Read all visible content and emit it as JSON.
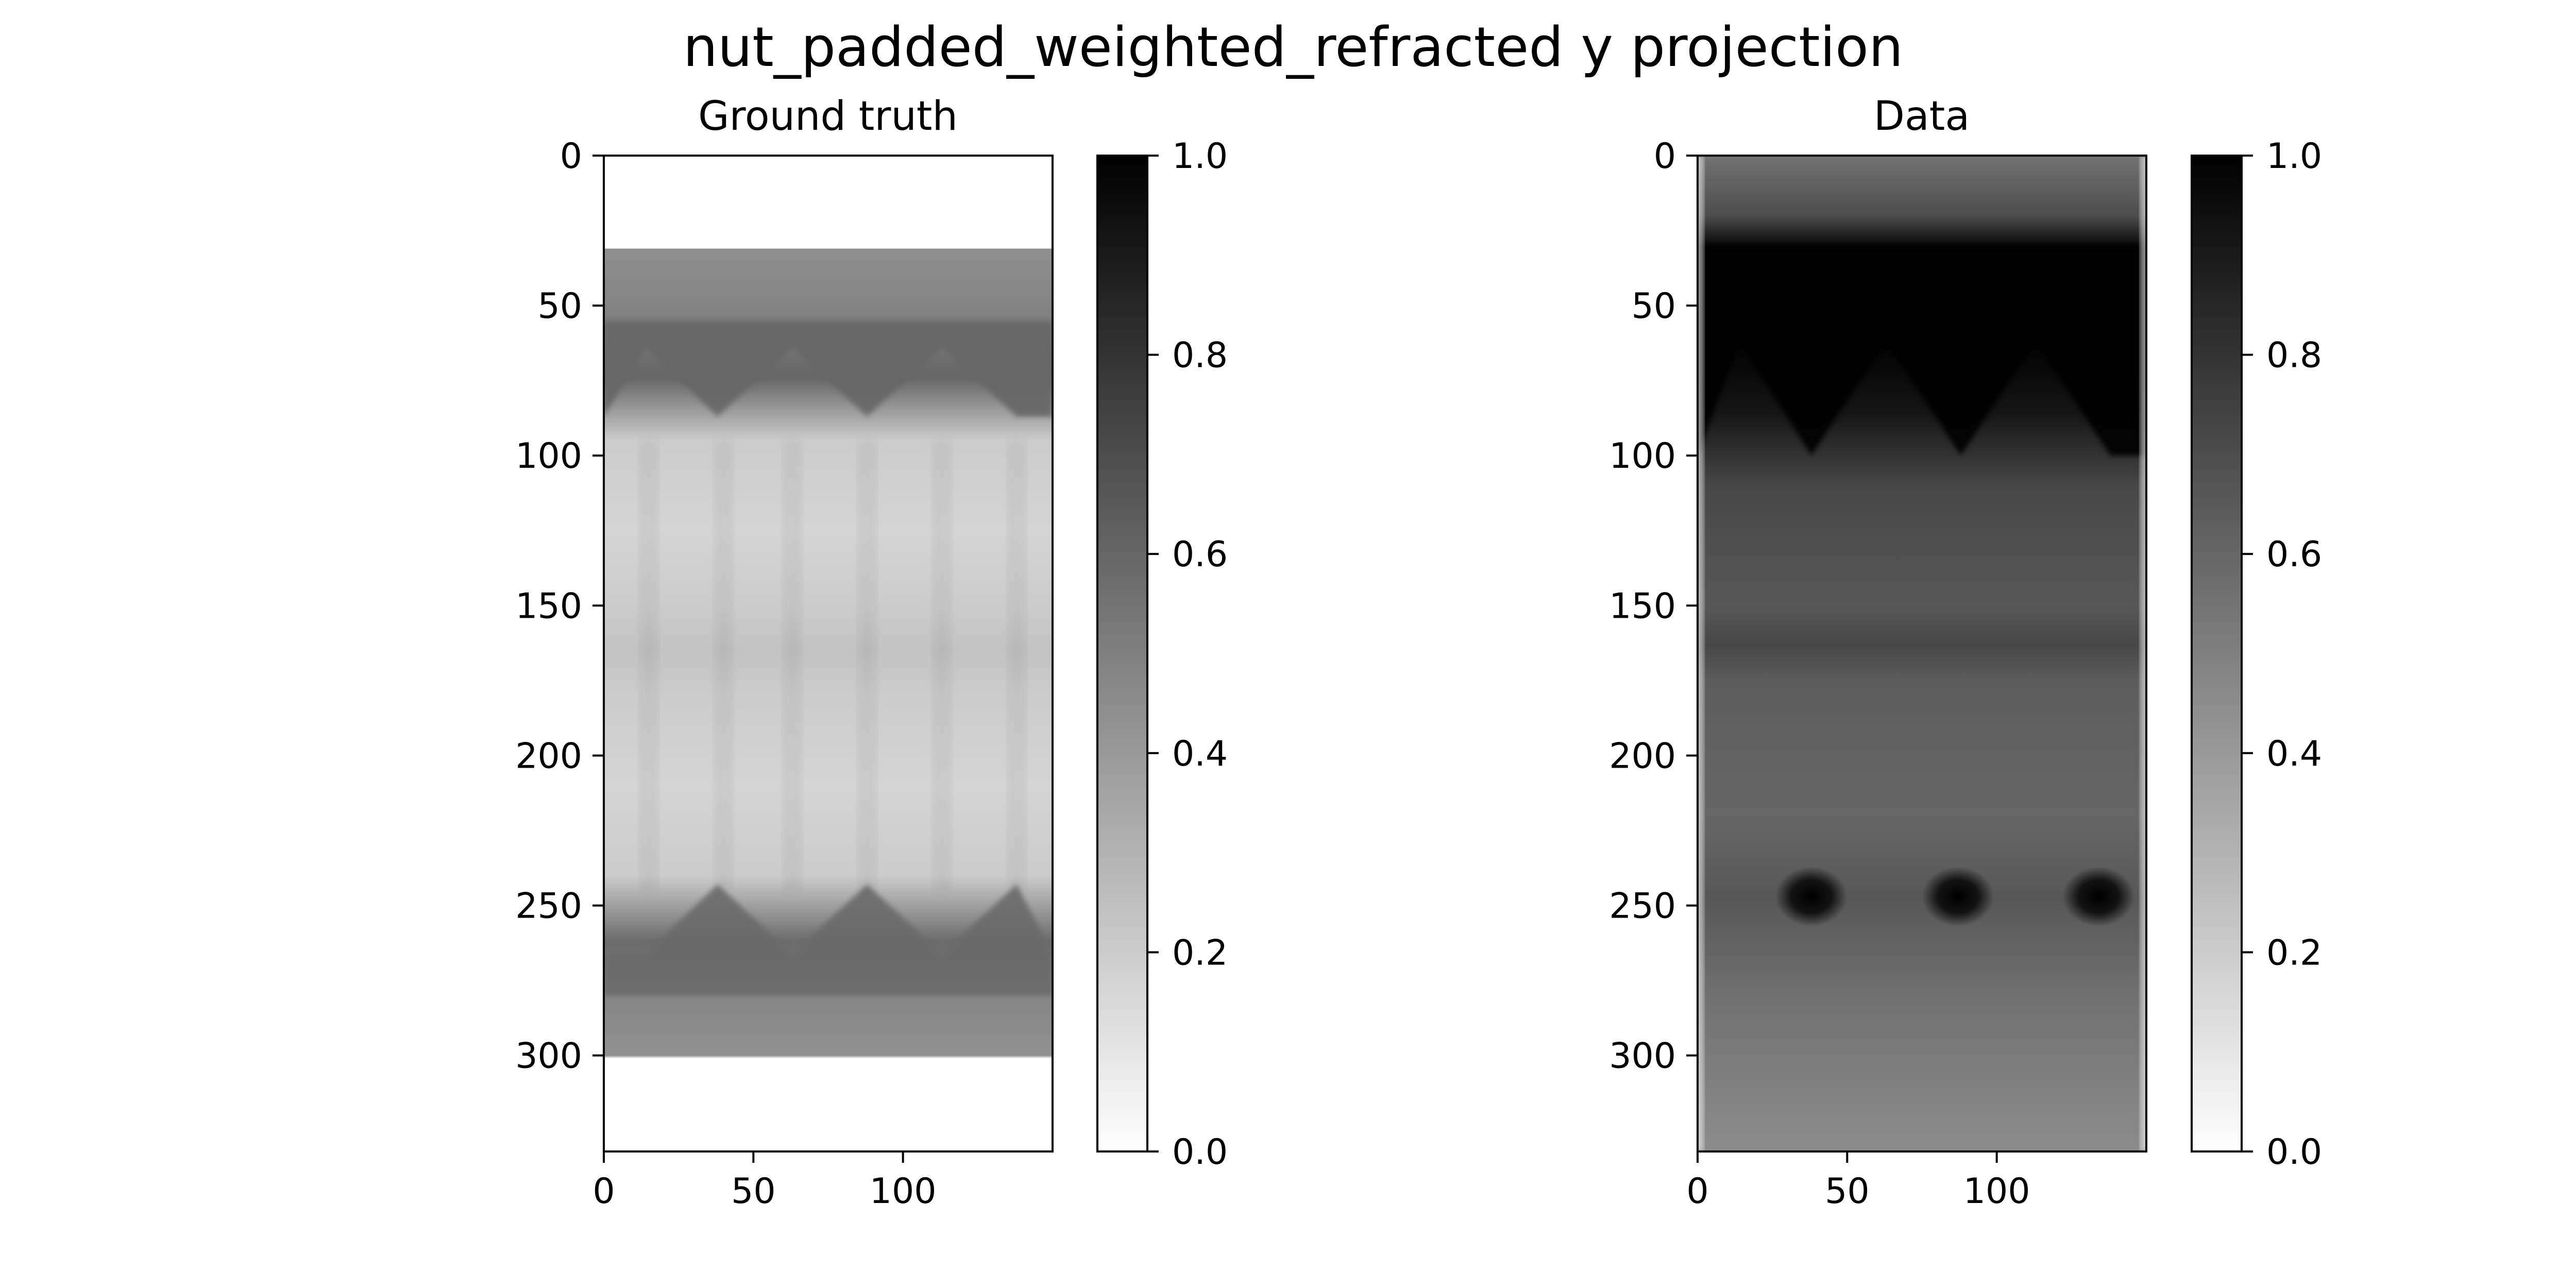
{
  "suptitle": "nut_padded_weighted_refracted y projection",
  "chart_data": [
    {
      "type": "heatmap",
      "title": "Ground truth",
      "xlabel": "",
      "ylabel": "",
      "cmap": "gray_r",
      "xlim": [
        0,
        150
      ],
      "ylim": [
        332,
        0
      ],
      "xticks": [
        0,
        50,
        100
      ],
      "yticks": [
        0,
        50,
        100,
        150,
        200,
        250,
        300
      ],
      "colorbar": {
        "range": [
          0.0,
          1.0
        ],
        "ticks": [
          "0.0",
          "0.2",
          "0.4",
          "0.6",
          "0.8",
          "1.0"
        ]
      },
      "content_rows": [
        31,
        301
      ],
      "bands": [
        {
          "y": 0,
          "value": 0.0
        },
        {
          "y": 30,
          "value": 0.0
        },
        {
          "y": 31,
          "value": 0.44
        },
        {
          "y": 55,
          "value": 0.5
        },
        {
          "y": 74,
          "value": 0.6
        },
        {
          "y": 95,
          "value": 0.2
        },
        {
          "y": 125,
          "value": 0.17
        },
        {
          "y": 150,
          "value": 0.2
        },
        {
          "y": 165,
          "value": 0.24
        },
        {
          "y": 180,
          "value": 0.2
        },
        {
          "y": 210,
          "value": 0.17
        },
        {
          "y": 240,
          "value": 0.2
        },
        {
          "y": 262,
          "value": 0.58
        },
        {
          "y": 280,
          "value": 0.48
        },
        {
          "y": 300,
          "value": 0.43
        },
        {
          "y": 301,
          "value": 0.0
        },
        {
          "y": 332,
          "value": 0.0
        }
      ],
      "zigzag_top": {
        "value": 0.6,
        "upper_y": 64,
        "lower_y": 87,
        "peaks_x": [
          0,
          38,
          88,
          138
        ],
        "valleys_x": [
          14,
          63,
          113
        ]
      },
      "zigzag_bottom": {
        "value": 0.58,
        "upper_y": 243,
        "lower_y": 266,
        "peaks_x": [
          38,
          88,
          138
        ],
        "valleys_x": [
          14,
          63,
          113
        ]
      },
      "column_stripes_x": [
        15,
        40,
        63,
        88,
        113,
        138
      ]
    },
    {
      "type": "heatmap",
      "title": "Data",
      "xlabel": "",
      "ylabel": "",
      "cmap": "gray_r",
      "xlim": [
        0,
        150
      ],
      "ylim": [
        332,
        0
      ],
      "xticks": [
        0,
        50,
        100
      ],
      "yticks": [
        0,
        50,
        100,
        150,
        200,
        250,
        300
      ],
      "colorbar": {
        "range": [
          0.0,
          1.0
        ],
        "ticks": [
          "0.0",
          "0.2",
          "0.4",
          "0.6",
          "0.8",
          "1.0"
        ]
      },
      "bands": [
        {
          "y": 0,
          "value": 0.55
        },
        {
          "y": 20,
          "value": 0.7
        },
        {
          "y": 30,
          "value": 0.97
        },
        {
          "y": 60,
          "value": 1.0
        },
        {
          "y": 85,
          "value": 0.92
        },
        {
          "y": 110,
          "value": 0.72
        },
        {
          "y": 150,
          "value": 0.66
        },
        {
          "y": 163,
          "value": 0.72
        },
        {
          "y": 175,
          "value": 0.64
        },
        {
          "y": 220,
          "value": 0.6
        },
        {
          "y": 248,
          "value": 0.66
        },
        {
          "y": 280,
          "value": 0.56
        },
        {
          "y": 332,
          "value": 0.45
        }
      ],
      "zigzag_top": {
        "value": 1.0,
        "upper_y": 62,
        "lower_y": 100,
        "peaks_x": [
          0,
          38,
          88,
          138
        ],
        "valleys_x": [
          14,
          63,
          113
        ]
      },
      "hot_spots": [
        {
          "x": 38,
          "y": 247,
          "value": 1.0
        },
        {
          "x": 87,
          "y": 247,
          "value": 1.0
        },
        {
          "x": 134,
          "y": 247,
          "value": 1.0
        }
      ],
      "edge_columns_x": [
        0,
        150
      ]
    }
  ]
}
